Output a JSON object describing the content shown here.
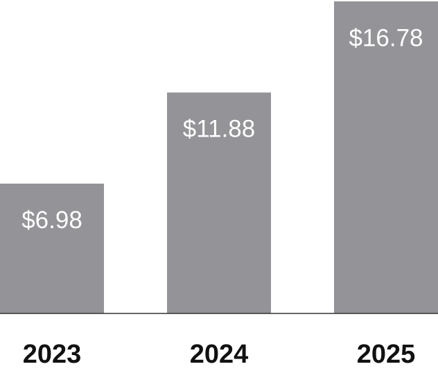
{
  "chart_data": {
    "type": "bar",
    "categories": [
      "2023",
      "2024",
      "2025"
    ],
    "values": [
      6.98,
      11.88,
      16.78
    ],
    "value_labels": [
      "$6.98",
      "$11.88",
      "$16.78"
    ],
    "color": "#939398"
  }
}
